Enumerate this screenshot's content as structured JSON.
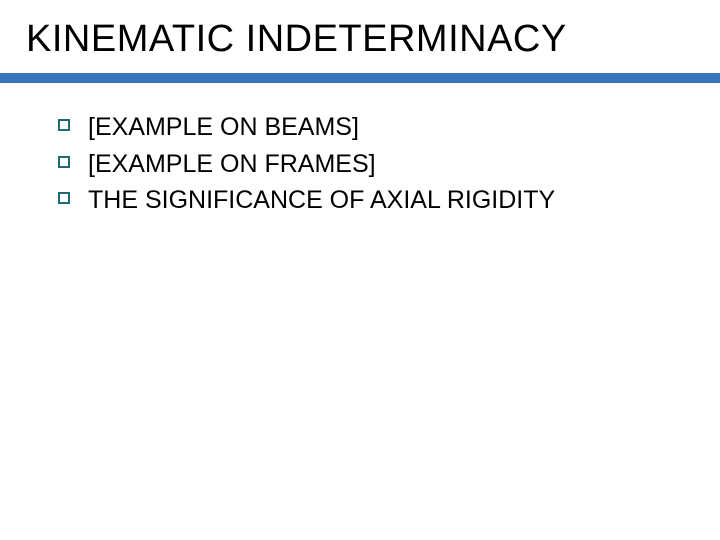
{
  "title": "KINEMATIC INDETERMINACY",
  "underline_color": "#3976bd",
  "bullet_border_color": "#1f6b6f",
  "items": [
    "[EXAMPLE ON BEAMS]",
    "[EXAMPLE ON FRAMES]",
    "THE SIGNIFICANCE OF AXIAL RIGIDITY"
  ]
}
